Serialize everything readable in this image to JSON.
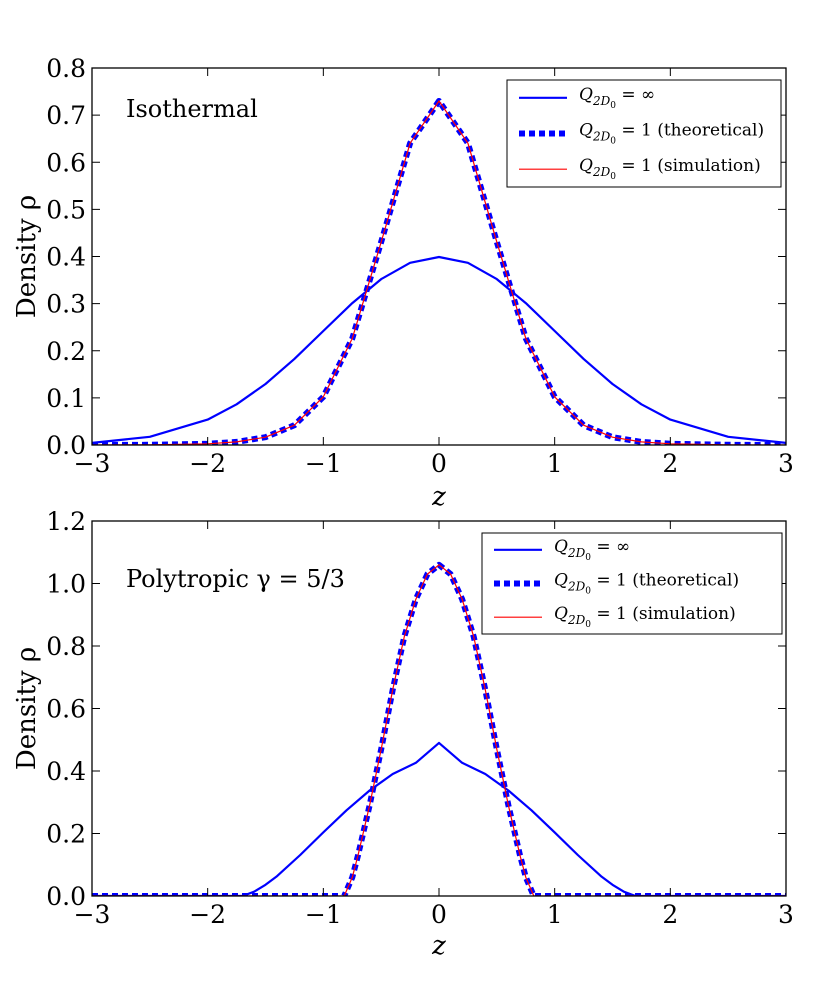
{
  "chart_data": [
    {
      "type": "line",
      "annotation": "Isothermal",
      "xlabel": "z",
      "ylabel": "Density ρ",
      "xlim": [
        -3,
        3
      ],
      "ylim": [
        0,
        0.8
      ],
      "xticks": [
        -3,
        -2,
        -1,
        0,
        1,
        2,
        3
      ],
      "xtick_labels": [
        "−3",
        "−2",
        "−1",
        "0",
        "1",
        "2",
        "3"
      ],
      "yticks": [
        0.0,
        0.1,
        0.2,
        0.3,
        0.4,
        0.5,
        0.6,
        0.7,
        0.8
      ],
      "ytick_labels": [
        "0.0",
        "0.1",
        "0.2",
        "0.3",
        "0.4",
        "0.5",
        "0.6",
        "0.7",
        "0.8"
      ],
      "x": [
        -3.0,
        -2.5,
        -2.0,
        -1.75,
        -1.5,
        -1.25,
        -1.0,
        -0.75,
        -0.5,
        -0.25,
        0.0,
        0.25,
        0.5,
        0.75,
        1.0,
        1.25,
        1.5,
        1.75,
        2.0,
        2.5,
        3.0
      ],
      "series": [
        {
          "name": "Q2D0 = ∞",
          "legend_math": "Q",
          "legend_sub": "2D",
          "legend_subsub": "0",
          "legend_rest": " = ∞",
          "color": "#0000ff",
          "style": "solid",
          "values": [
            0.0044,
            0.0175,
            0.054,
            0.0863,
            0.1295,
            0.1826,
            0.242,
            0.3011,
            0.3521,
            0.3867,
            0.3989,
            0.3867,
            0.3521,
            0.3011,
            0.242,
            0.1826,
            0.1295,
            0.0863,
            0.054,
            0.0175,
            0.0044
          ]
        },
        {
          "name": "Q2D0 = 1 (theoretical)",
          "legend_math": "Q",
          "legend_sub": "2D",
          "legend_subsub": "0",
          "legend_rest": " = 1 (theoretical)",
          "color": "#0000ff",
          "style": "dotted",
          "values": [
            0.0,
            0.0005,
            0.0025,
            0.0066,
            0.0165,
            0.0421,
            0.1021,
            0.2262,
            0.4309,
            0.6405,
            0.73,
            0.6405,
            0.4309,
            0.2262,
            0.1021,
            0.0421,
            0.0165,
            0.0066,
            0.0025,
            0.0005,
            0.0
          ]
        },
        {
          "name": "Q2D0 = 1 (simulation)",
          "legend_math": "Q",
          "legend_sub": "2D",
          "legend_subsub": "0",
          "legend_rest": " = 1 (simulation)",
          "color": "#ff0000",
          "style": "thin",
          "values": [
            0.0,
            0.0005,
            0.0025,
            0.0066,
            0.0165,
            0.0421,
            0.1021,
            0.2262,
            0.4309,
            0.6405,
            0.73,
            0.6405,
            0.4309,
            0.2262,
            0.1021,
            0.0421,
            0.0165,
            0.0066,
            0.0025,
            0.0005,
            0.0
          ]
        }
      ]
    },
    {
      "type": "line",
      "annotation": "Polytropic γ = 5/3",
      "xlabel": "z",
      "ylabel": "Density ρ",
      "xlim": [
        -3,
        3
      ],
      "ylim": [
        0,
        1.2
      ],
      "xticks": [
        -3,
        -2,
        -1,
        0,
        1,
        2,
        3
      ],
      "xtick_labels": [
        "−3",
        "−2",
        "−1",
        "0",
        "1",
        "2",
        "3"
      ],
      "yticks": [
        0.0,
        0.2,
        0.4,
        0.6,
        0.8,
        1.0,
        1.2
      ],
      "ytick_labels": [
        "0.0",
        "0.2",
        "0.4",
        "0.6",
        "0.8",
        "1.0",
        "1.2"
      ],
      "series": [
        {
          "name": "Q2D0 = ∞",
          "legend_math": "Q",
          "legend_sub": "2D",
          "legend_subsub": "0",
          "legend_rest": " = ∞",
          "color": "#0000ff",
          "style": "solid",
          "x": [
            -3.0,
            -1.7,
            -1.6,
            -1.5,
            -1.4,
            -1.2,
            -1.0,
            -0.8,
            -0.6,
            -0.4,
            -0.2,
            0.0,
            0.2,
            0.4,
            0.6,
            0.8,
            1.0,
            1.2,
            1.4,
            1.5,
            1.6,
            1.7,
            3.0
          ],
          "values": [
            0.0,
            0.0,
            0.0135,
            0.0357,
            0.0637,
            0.1313,
            0.2034,
            0.2741,
            0.3377,
            0.3904,
            0.4264,
            0.49,
            0.4264,
            0.3904,
            0.3377,
            0.2741,
            0.2034,
            0.1313,
            0.0637,
            0.0357,
            0.0135,
            0.0,
            0.0
          ]
        },
        {
          "name": "Q2D0 = 1 (theoretical)",
          "legend_math": "Q",
          "legend_sub": "2D",
          "legend_subsub": "0",
          "legend_rest": " = 1 (theoretical)",
          "color": "#0000ff",
          "style": "dotted",
          "x": [
            -3.0,
            -0.82,
            -0.75,
            -0.7,
            -0.6,
            -0.5,
            -0.4,
            -0.3,
            -0.2,
            -0.1,
            0.0,
            0.1,
            0.2,
            0.3,
            0.4,
            0.5,
            0.6,
            0.7,
            0.75,
            0.82,
            3.0
          ],
          "values": [
            0.0,
            0.0,
            0.06,
            0.13,
            0.29,
            0.47,
            0.66,
            0.83,
            0.95,
            1.03,
            1.06,
            1.03,
            0.95,
            0.83,
            0.66,
            0.47,
            0.29,
            0.13,
            0.06,
            0.0,
            0.0
          ]
        },
        {
          "name": "Q2D0 = 1 (simulation)",
          "legend_math": "Q",
          "legend_sub": "2D",
          "legend_subsub": "0",
          "legend_rest": " = 1 (simulation)",
          "color": "#ff0000",
          "style": "thin",
          "x": [
            -3.0,
            -0.82,
            -0.75,
            -0.7,
            -0.6,
            -0.5,
            -0.4,
            -0.3,
            -0.2,
            -0.1,
            0.0,
            0.1,
            0.2,
            0.3,
            0.4,
            0.5,
            0.6,
            0.7,
            0.75,
            0.82,
            3.0
          ],
          "values": [
            0.0,
            0.0,
            0.06,
            0.13,
            0.29,
            0.47,
            0.66,
            0.83,
            0.95,
            1.03,
            1.06,
            1.03,
            0.95,
            0.83,
            0.66,
            0.47,
            0.29,
            0.13,
            0.06,
            0.0,
            0.0
          ]
        }
      ]
    }
  ]
}
